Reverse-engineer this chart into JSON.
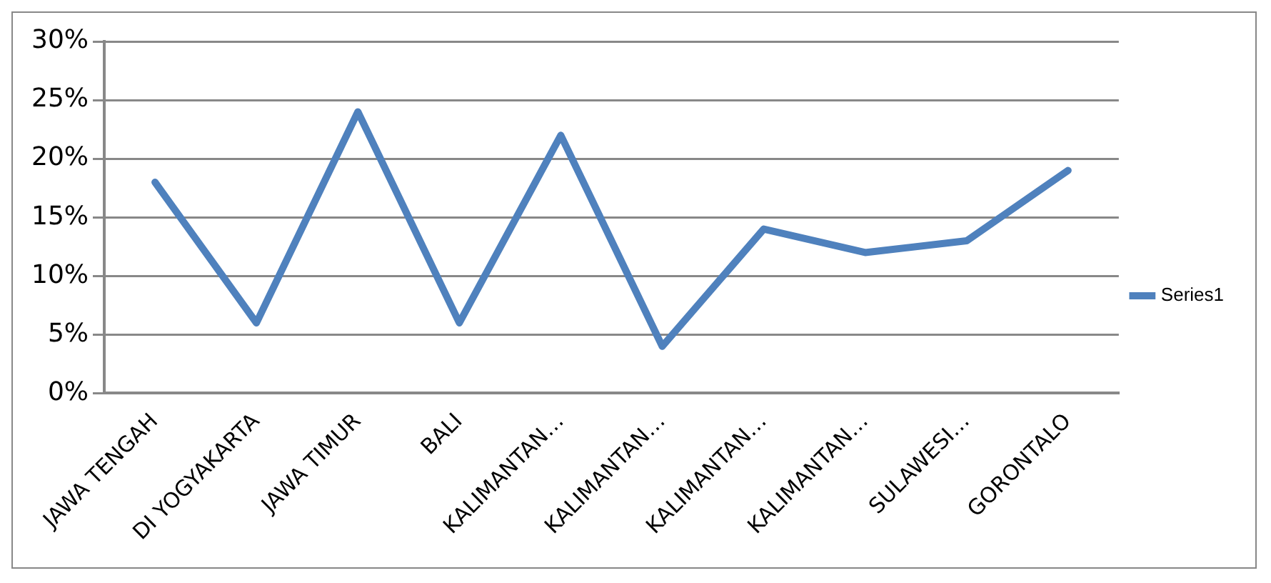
{
  "chart_data": {
    "type": "line",
    "categories": [
      "JAWA TENGAH",
      "DI YOGYAKARTA",
      "JAWA TIMUR",
      "BALI",
      "KALIMANTAN…",
      "KALIMANTAN…",
      "KALIMANTAN…",
      "KALIMANTAN…",
      "SULAWESI…",
      "GORONTALO"
    ],
    "series": [
      {
        "name": "Series1",
        "color": "#4f81bd",
        "values": [
          18,
          6,
          24,
          6,
          22,
          4,
          14,
          12,
          13,
          19
        ]
      }
    ],
    "ylim": [
      0,
      30
    ],
    "yticks": [
      {
        "value": 0,
        "label": "0%"
      },
      {
        "value": 5,
        "label": "5%"
      },
      {
        "value": 10,
        "label": "10%"
      },
      {
        "value": 15,
        "label": "15%"
      },
      {
        "value": 20,
        "label": "20%"
      },
      {
        "value": 25,
        "label": "25%"
      },
      {
        "value": 30,
        "label": "30%"
      }
    ],
    "grid": "y",
    "legend": "right",
    "marker": "none",
    "line_style": "solid"
  }
}
